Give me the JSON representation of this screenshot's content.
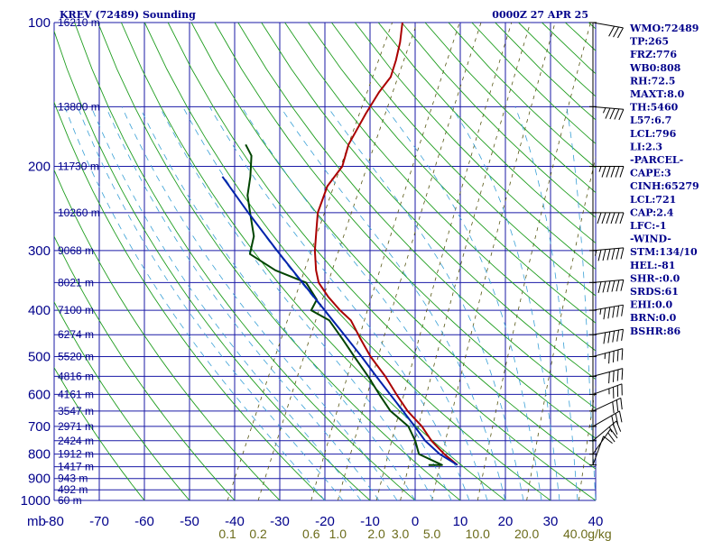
{
  "header": {
    "title": "KREV (72489) Sounding",
    "datetime": "0000Z 27 APR 25"
  },
  "indices": [
    "WMO:72489",
    "TP:265",
    "FRZ:776",
    "WB0:808",
    "RH:72.5",
    "MAXT:8.0",
    "TH:5460",
    "L57:6.7",
    "LCL:796",
    "LI:2.3",
    "-PARCEL-",
    "CAPE:3",
    "CINH:65279",
    "LCL:721",
    "CAP:2.4",
    "LFC:-1",
    "-WIND-",
    "STM:134/10",
    "HEL:-81",
    "SHR-:0.0",
    "SRDS:61",
    "EHI:0.0",
    "BRN:0.0",
    "BSHR:86"
  ],
  "chart_data": {
    "type": "line",
    "diagram": "skew-T log-P",
    "xlim": [
      -80,
      40
    ],
    "ylim": [
      1000,
      100
    ],
    "y_scale": "log",
    "y_reversed": true,
    "xlabel_unit": "mb",
    "mixing_ratio_unit": "g/kg",
    "pressure_ticks": [
      {
        "p": 100,
        "label": "100"
      },
      {
        "p": 200,
        "label": "200"
      },
      {
        "p": 300,
        "label": "300"
      },
      {
        "p": 400,
        "label": "400"
      },
      {
        "p": 500,
        "label": "500"
      },
      {
        "p": 600,
        "label": "600"
      },
      {
        "p": 700,
        "label": "700"
      },
      {
        "p": 800,
        "label": "800"
      },
      {
        "p": 900,
        "label": "900"
      },
      {
        "p": 1000,
        "label": "1000"
      }
    ],
    "pressure_grid": [
      100,
      150,
      200,
      250,
      300,
      350,
      400,
      450,
      500,
      550,
      600,
      650,
      700,
      750,
      800,
      850,
      900,
      950,
      1000
    ],
    "temperature_ticks": [
      {
        "t": -80,
        "label": "-80"
      },
      {
        "t": -70,
        "label": "-70"
      },
      {
        "t": -60,
        "label": "-60"
      },
      {
        "t": -50,
        "label": "-50"
      },
      {
        "t": -40,
        "label": "-40"
      },
      {
        "t": -30,
        "label": "-30"
      },
      {
        "t": -20,
        "label": "-20"
      },
      {
        "t": -10,
        "label": "-10"
      },
      {
        "t": 0,
        "label": "0"
      },
      {
        "t": 10,
        "label": "10"
      },
      {
        "t": 20,
        "label": "20"
      },
      {
        "t": 30,
        "label": "30"
      },
      {
        "t": 40,
        "label": "40"
      }
    ],
    "height_labels": [
      {
        "p": 100,
        "label": "16210 m"
      },
      {
        "p": 150,
        "label": "13800 m"
      },
      {
        "p": 200,
        "label": "11730 m"
      },
      {
        "p": 250,
        "label": "10260 m"
      },
      {
        "p": 300,
        "label": "9068 m"
      },
      {
        "p": 350,
        "label": "8021 m"
      },
      {
        "p": 400,
        "label": "7100 m"
      },
      {
        "p": 450,
        "label": "6274 m"
      },
      {
        "p": 500,
        "label": "5520 m"
      },
      {
        "p": 550,
        "label": "4816 m"
      },
      {
        "p": 600,
        "label": "4161 m"
      },
      {
        "p": 650,
        "label": "3547 m"
      },
      {
        "p": 700,
        "label": "2971 m"
      },
      {
        "p": 750,
        "label": "2424 m"
      },
      {
        "p": 800,
        "label": "1912 m"
      },
      {
        "p": 850,
        "label": "1417 m"
      },
      {
        "p": 900,
        "label": "943 m"
      },
      {
        "p": 950,
        "label": "492 m"
      },
      {
        "p": 1000,
        "label": "60 m"
      }
    ],
    "mixing_ratio_lines": [
      {
        "w": 0.1,
        "label": "0.1"
      },
      {
        "w": 0.2,
        "label": "0.2"
      },
      {
        "w": 0.6,
        "label": "0.6"
      },
      {
        "w": 1.0,
        "label": "1.0"
      },
      {
        "w": 2.0,
        "label": "2.0"
      },
      {
        "w": 3.0,
        "label": "3.0"
      },
      {
        "w": 5.0,
        "label": "5.0"
      },
      {
        "w": 10.0,
        "label": "10.0"
      },
      {
        "w": 20.0,
        "label": "20.0"
      },
      {
        "w": 40.0,
        "label": "40.0"
      }
    ],
    "series": [
      {
        "kind": "temperature",
        "color": "#aa0000",
        "points": [
          [
            843,
            5.2
          ],
          [
            800,
            1.0
          ],
          [
            750,
            -3.4
          ],
          [
            700,
            -7.2
          ],
          [
            650,
            -12.2
          ],
          [
            600,
            -16.6
          ],
          [
            550,
            -21.2
          ],
          [
            500,
            -26.8
          ],
          [
            460,
            -31.0
          ],
          [
            420,
            -35.4
          ],
          [
            400,
            -39.0
          ],
          [
            375,
            -43.2
          ],
          [
            350,
            -47.0
          ],
          [
            330,
            -49.0
          ],
          [
            300,
            -51.6
          ],
          [
            270,
            -53.8
          ],
          [
            250,
            -55.4
          ],
          [
            220,
            -56.4
          ],
          [
            200,
            -55.4
          ],
          [
            180,
            -56.6
          ],
          [
            155,
            -56.4
          ],
          [
            140,
            -56.0
          ],
          [
            130,
            -55.2
          ],
          [
            120,
            -56.0
          ],
          [
            110,
            -57.2
          ],
          [
            100,
            -59.0
          ]
        ]
      },
      {
        "kind": "dewpoint",
        "color": "#004400",
        "points": [
          [
            843,
            -1.2
          ],
          [
            843,
            1.8
          ],
          [
            800,
            -4.6
          ],
          [
            750,
            -7.0
          ],
          [
            700,
            -10.2
          ],
          [
            650,
            -16.0
          ],
          [
            600,
            -20.4
          ],
          [
            550,
            -25.0
          ],
          [
            500,
            -30.4
          ],
          [
            460,
            -35.0
          ],
          [
            420,
            -40.2
          ],
          [
            400,
            -45.4
          ],
          [
            380,
            -45.4
          ],
          [
            350,
            -49.8
          ],
          [
            330,
            -58.0
          ],
          [
            305,
            -65.6
          ],
          [
            280,
            -66.8
          ],
          [
            250,
            -70.4
          ],
          [
            230,
            -73.0
          ],
          [
            210,
            -74.6
          ],
          [
            190,
            -76.8
          ],
          [
            180,
            -79.4
          ]
        ]
      },
      {
        "kind": "parcel",
        "color": "#0022aa",
        "points": [
          [
            843,
            5.2
          ],
          [
            800,
            0.0
          ],
          [
            750,
            -4.8
          ],
          [
            700,
            -8.8
          ],
          [
            650,
            -13.2
          ],
          [
            600,
            -18.0
          ],
          [
            550,
            -23.2
          ],
          [
            500,
            -28.8
          ],
          [
            450,
            -35.2
          ],
          [
            400,
            -42.4
          ],
          [
            350,
            -50.6
          ],
          [
            300,
            -60.0
          ],
          [
            250,
            -70.8
          ],
          [
            210,
            -80.8
          ]
        ]
      }
    ],
    "winds": [
      {
        "p": 843,
        "dir": 200,
        "spd": 10
      },
      {
        "p": 800,
        "dir": 215,
        "spd": 20
      },
      {
        "p": 750,
        "dir": 230,
        "spd": 25
      },
      {
        "p": 700,
        "dir": 240,
        "spd": 30
      },
      {
        "p": 650,
        "dir": 245,
        "spd": 30
      },
      {
        "p": 600,
        "dir": 250,
        "spd": 35
      },
      {
        "p": 550,
        "dir": 255,
        "spd": 40
      },
      {
        "p": 500,
        "dir": 255,
        "spd": 45
      },
      {
        "p": 450,
        "dir": 260,
        "spd": 50
      },
      {
        "p": 400,
        "dir": 260,
        "spd": 55
      },
      {
        "p": 350,
        "dir": 265,
        "spd": 60
      },
      {
        "p": 300,
        "dir": 265,
        "spd": 65
      },
      {
        "p": 250,
        "dir": 270,
        "spd": 60
      },
      {
        "p": 200,
        "dir": 270,
        "spd": 55
      },
      {
        "p": 150,
        "dir": 275,
        "spd": 45
      },
      {
        "p": 100,
        "dir": 280,
        "spd": 30
      }
    ]
  }
}
